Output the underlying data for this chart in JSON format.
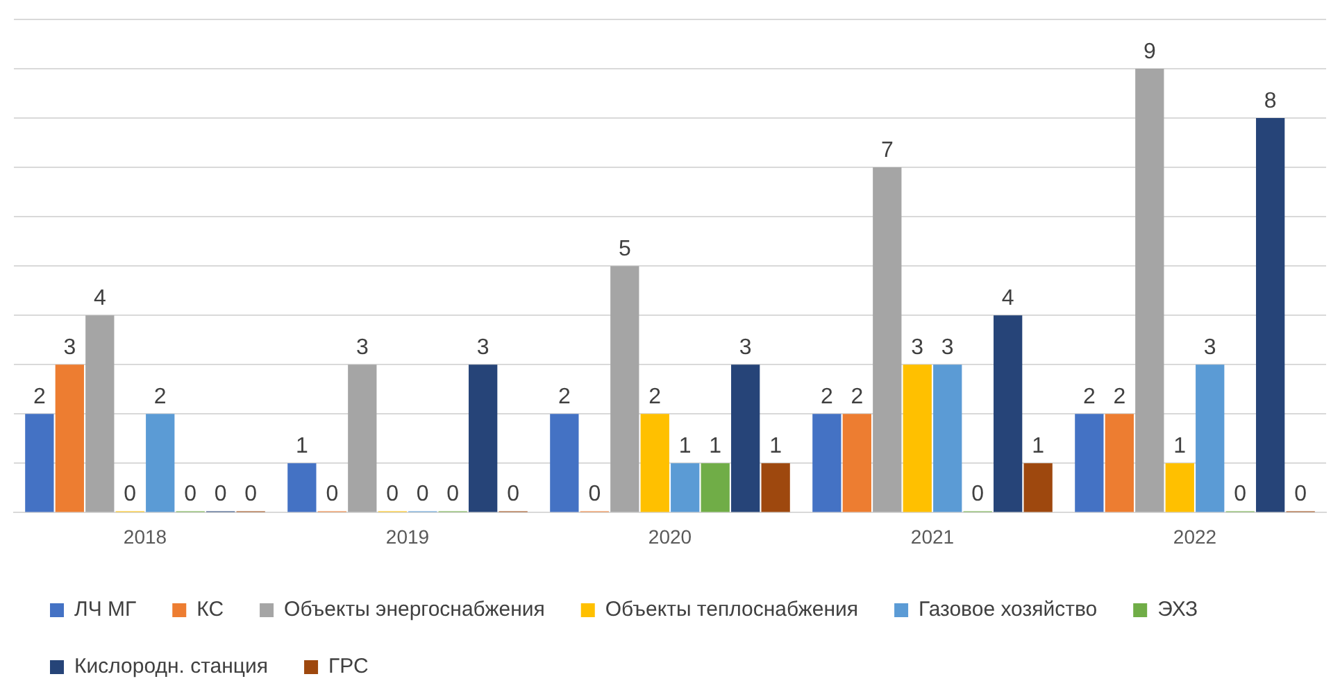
{
  "chart_data": {
    "type": "bar",
    "categories": [
      "2018",
      "2019",
      "2020",
      "2021",
      "2022"
    ],
    "series": [
      {
        "name": "ЛЧ МГ",
        "color": "#4472c4",
        "values": [
          2,
          1,
          2,
          2,
          2
        ]
      },
      {
        "name": "КС",
        "color": "#ed7d31",
        "values": [
          3,
          0,
          0,
          2,
          2
        ]
      },
      {
        "name": "Объекты энергоснабжения",
        "color": "#a5a5a5",
        "values": [
          4,
          3,
          5,
          7,
          9
        ]
      },
      {
        "name": "Объекты теплоснабжения",
        "color": "#ffc000",
        "values": [
          0,
          0,
          2,
          3,
          1
        ]
      },
      {
        "name": "Газовое хозяйство",
        "color": "#5b9bd5",
        "values": [
          2,
          0,
          1,
          3,
          3
        ]
      },
      {
        "name": "ЭХЗ",
        "color": "#70ad47",
        "values": [
          0,
          0,
          1,
          0,
          0
        ]
      },
      {
        "name": "Кислородн. станция",
        "color": "#264478",
        "values": [
          0,
          3,
          3,
          4,
          8
        ]
      },
      {
        "name": "ГРС",
        "color": "#9e480e",
        "values": [
          0,
          0,
          1,
          1,
          0
        ]
      }
    ],
    "ylim": [
      0,
      10
    ],
    "yticks": [
      {
        "value": 0,
        "label": null
      },
      {
        "value": 1,
        "label": null
      },
      {
        "value": 2,
        "label": null
      },
      {
        "value": 3,
        "label": null
      },
      {
        "value": 4,
        "label": null
      },
      {
        "value": 5,
        "label": null
      },
      {
        "value": 6,
        "label": null
      },
      {
        "value": 7,
        "label": null
      },
      {
        "value": 8,
        "label": null
      },
      {
        "value": 9,
        "label": null
      },
      {
        "value": 10,
        "label": null
      }
    ],
    "tick_labels": "x",
    "grid": "y",
    "legend": "bottom",
    "data_labels": true
  }
}
